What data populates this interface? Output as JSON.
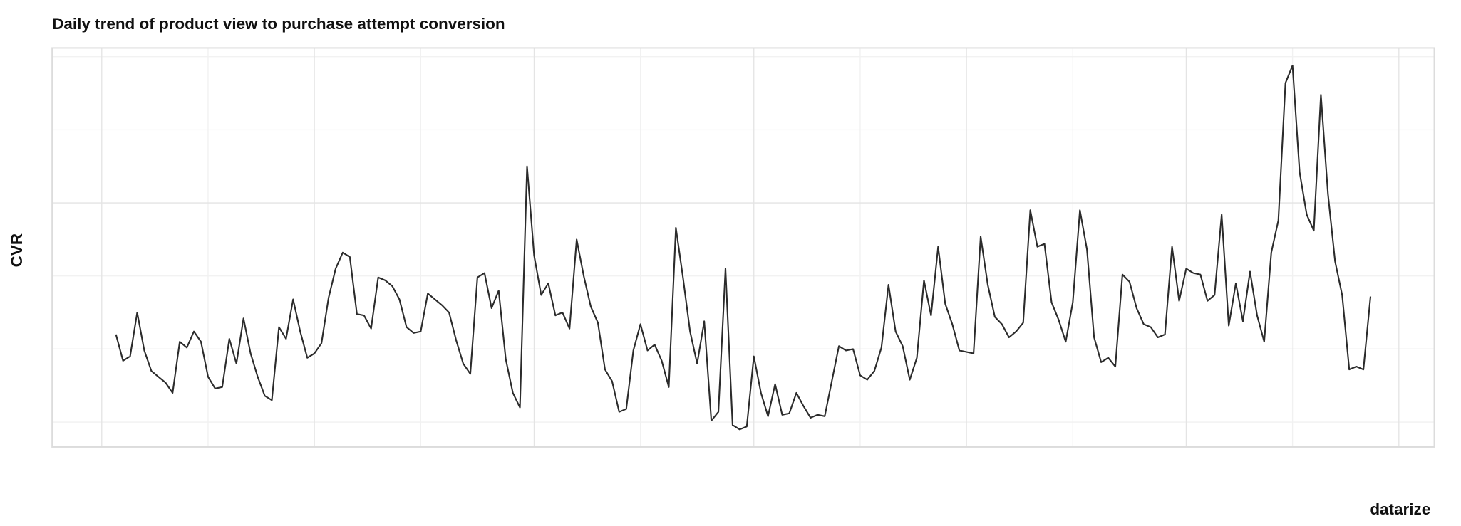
{
  "chart_data": {
    "type": "line",
    "title": "Daily trend of product view to purchase attempt conversion",
    "x_label": "datarize",
    "y_label": "CVR",
    "line_color": "#2b2b2b",
    "grid": true,
    "show_tick_labels": false,
    "xlim": [
      -7,
      188
    ],
    "ylim": [
      0.33,
      3.06
    ],
    "xticks": [
      0,
      30,
      61,
      92,
      122,
      153,
      183
    ],
    "xticks_minor": [
      15,
      45,
      76,
      107,
      137,
      168
    ],
    "yticks": [
      1,
      2
    ],
    "yticks_minor": [
      0.5,
      1.5,
      2.5,
      3
    ],
    "series": [
      {
        "name": "CVR",
        "x": [
          2,
          3,
          4,
          5,
          6,
          7,
          8,
          9,
          10,
          11,
          12,
          13,
          14,
          15,
          16,
          17,
          18,
          19,
          20,
          21,
          22,
          23,
          24,
          25,
          26,
          27,
          28,
          29,
          30,
          31,
          32,
          33,
          34,
          35,
          36,
          37,
          38,
          39,
          40,
          41,
          42,
          43,
          44,
          45,
          46,
          47,
          48,
          49,
          50,
          51,
          52,
          53,
          54,
          55,
          56,
          57,
          58,
          59,
          60,
          61,
          62,
          63,
          64,
          65,
          66,
          67,
          68,
          69,
          70,
          71,
          72,
          73,
          74,
          75,
          76,
          77,
          78,
          79,
          80,
          81,
          82,
          83,
          84,
          85,
          86,
          87,
          88,
          89,
          90,
          91,
          92,
          93,
          94,
          95,
          96,
          97,
          98,
          99,
          100,
          101,
          102,
          103,
          104,
          105,
          106,
          107,
          108,
          109,
          110,
          111,
          112,
          113,
          114,
          115,
          116,
          117,
          118,
          119,
          120,
          121,
          122,
          123,
          124,
          125,
          126,
          127,
          128,
          129,
          130,
          131,
          132,
          133,
          134,
          135,
          136,
          137,
          138,
          139,
          140,
          141,
          142,
          143,
          144,
          145,
          146,
          147,
          148,
          149,
          150,
          151,
          152,
          153,
          154,
          155,
          156,
          157,
          158,
          159,
          160,
          161,
          162,
          163,
          164,
          165,
          166,
          167,
          168,
          169,
          170,
          171,
          172,
          173,
          174,
          175,
          176,
          177,
          178,
          179
        ],
        "values": [
          1.1,
          0.92,
          0.95,
          1.25,
          0.99,
          0.85,
          0.81,
          0.77,
          0.7,
          1.05,
          1.01,
          1.12,
          1.05,
          0.81,
          0.73,
          0.74,
          1.07,
          0.9,
          1.21,
          0.97,
          0.81,
          0.68,
          0.65,
          1.15,
          1.07,
          1.34,
          1.12,
          0.94,
          0.97,
          1.04,
          1.35,
          1.55,
          1.66,
          1.63,
          1.24,
          1.23,
          1.14,
          1.49,
          1.47,
          1.43,
          1.34,
          1.15,
          1.11,
          1.12,
          1.38,
          1.34,
          1.3,
          1.25,
          1.06,
          0.9,
          0.83,
          1.49,
          1.52,
          1.28,
          1.4,
          0.93,
          0.7,
          0.6,
          2.25,
          1.64,
          1.37,
          1.45,
          1.23,
          1.25,
          1.14,
          1.75,
          1.5,
          1.29,
          1.18,
          0.86,
          0.78,
          0.57,
          0.59,
          0.99,
          1.17,
          0.99,
          1.03,
          0.92,
          0.74,
          1.83,
          1.49,
          1.12,
          0.9,
          1.19,
          0.51,
          0.57,
          1.55,
          0.48,
          0.45,
          0.47,
          0.95,
          0.7,
          0.54,
          0.76,
          0.55,
          0.56,
          0.7,
          0.61,
          0.53,
          0.55,
          0.54,
          0.78,
          1.02,
          0.99,
          1.0,
          0.82,
          0.79,
          0.85,
          1.01,
          1.44,
          1.12,
          1.02,
          0.79,
          0.94,
          1.47,
          1.23,
          1.7,
          1.31,
          1.17,
          0.99,
          0.98,
          0.97,
          1.77,
          1.44,
          1.22,
          1.17,
          1.08,
          1.12,
          1.18,
          1.95,
          1.7,
          1.72,
          1.32,
          1.2,
          1.05,
          1.32,
          1.95,
          1.68,
          1.08,
          0.91,
          0.94,
          0.88,
          1.51,
          1.46,
          1.28,
          1.17,
          1.15,
          1.08,
          1.1,
          1.7,
          1.33,
          1.55,
          1.52,
          1.51,
          1.33,
          1.37,
          1.92,
          1.16,
          1.45,
          1.19,
          1.53,
          1.23,
          1.05,
          1.66,
          1.88,
          2.82,
          2.94,
          2.21,
          1.92,
          1.81,
          2.74,
          2.06,
          1.6,
          1.37,
          0.86,
          0.88,
          0.86,
          1.36
        ]
      }
    ]
  }
}
